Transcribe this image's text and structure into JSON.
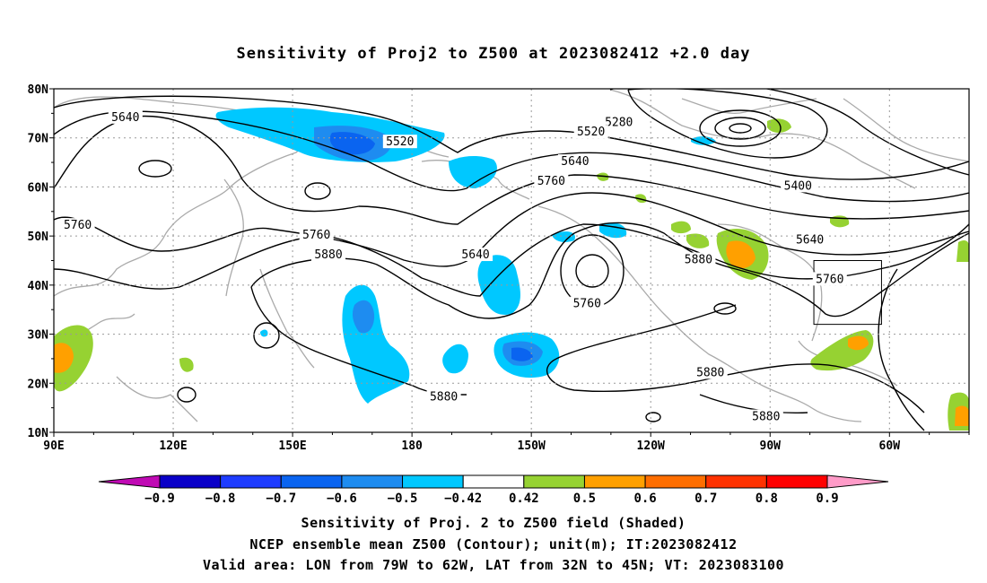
{
  "title": "Sensitivity of Proj2 to Z500 at 2023082412 +2.0 day",
  "map": {
    "lat_labels": [
      "80N",
      "70N",
      "60N",
      "50N",
      "40N",
      "30N",
      "20N",
      "10N"
    ],
    "lon_labels": [
      "90E",
      "120E",
      "150E",
      "180",
      "150W",
      "120W",
      "90W",
      "60W"
    ],
    "contour_labels": [
      {
        "text": "5280",
        "lon": 232,
        "lat": 73
      },
      {
        "text": "5400",
        "lon": 277,
        "lat": 60
      },
      {
        "text": "5520",
        "lon": 177,
        "lat": 69
      },
      {
        "text": "5520",
        "lon": 225,
        "lat": 71
      },
      {
        "text": "5640",
        "lon": 108,
        "lat": 74
      },
      {
        "text": "5640",
        "lon": 221,
        "lat": 65
      },
      {
        "text": "5640",
        "lon": 196,
        "lat": 46
      },
      {
        "text": "5640",
        "lon": 280,
        "lat": 49
      },
      {
        "text": "5760",
        "lon": 96,
        "lat": 52
      },
      {
        "text": "5760",
        "lon": 156,
        "lat": 50
      },
      {
        "text": "5760",
        "lon": 215,
        "lat": 61
      },
      {
        "text": "5760",
        "lon": 224,
        "lat": 36
      },
      {
        "text": "5760",
        "lon": 285,
        "lat": 41
      },
      {
        "text": "5880",
        "lon": 159,
        "lat": 46
      },
      {
        "text": "5880",
        "lon": 252,
        "lat": 45
      },
      {
        "text": "5880",
        "lon": 188,
        "lat": 17
      },
      {
        "text": "5880",
        "lon": 255,
        "lat": 22
      },
      {
        "text": "5880",
        "lon": 269,
        "lat": 13
      }
    ],
    "valid_box": {
      "lon_min": 281,
      "lon_max": 298,
      "lat_min": 32,
      "lat_max": 45
    }
  },
  "colorbar": {
    "labels": [
      "-0.9",
      "-0.8",
      "-0.7",
      "-0.6",
      "-0.5",
      "-0.42",
      "0.42",
      "0.5",
      "0.6",
      "0.7",
      "0.8",
      "0.9"
    ],
    "colors": [
      "#c00ab4",
      "#0a00c8",
      "#1e3cff",
      "#0a64f0",
      "#1e8cf0",
      "#00c8ff",
      "#ffffff",
      "#96d232",
      "#ffa000",
      "#ff6e00",
      "#ff3200",
      "#ff0000",
      "#ff9bc8"
    ]
  },
  "caption": {
    "line1": "Sensitivity of Proj. 2 to Z500 field (Shaded)",
    "line2": "NCEP ensemble mean Z500 (Contour); unit(m); IT:2023082412",
    "line3": "Valid area: LON from 79W to 62W, LAT from 32N to 45N; VT: 2023083100"
  }
}
